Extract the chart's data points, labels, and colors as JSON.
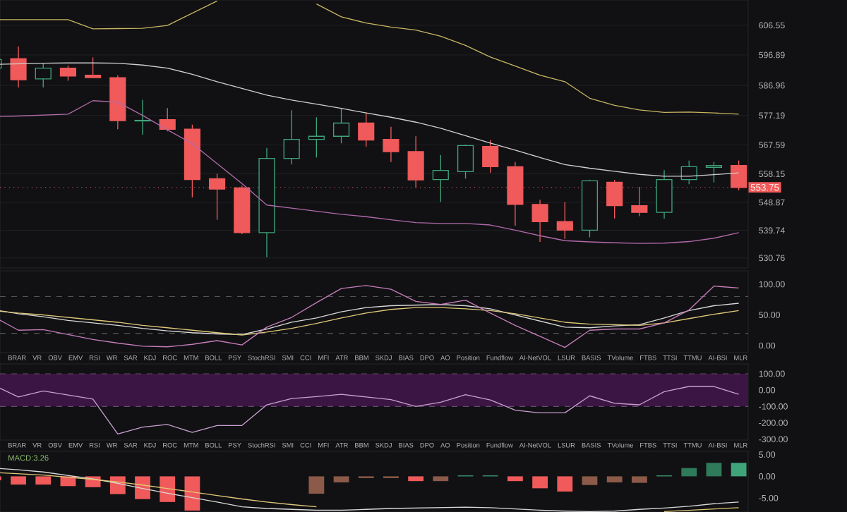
{
  "chart_data": [
    {
      "type": "candlestick",
      "categories": [
        null,
        null,
        null,
        null,
        null,
        null,
        null,
        null,
        null,
        null,
        null,
        null,
        null,
        null,
        null,
        null,
        null,
        null,
        null,
        null,
        null,
        null,
        null,
        null,
        null,
        null,
        null,
        null,
        null,
        null,
        null
      ],
      "ohlc": [
        [
          592.6,
          595.4,
          592.6,
          595.4
        ],
        [
          595.7,
          599.7,
          586.3,
          588.8
        ],
        [
          589.1,
          594.1,
          586.3,
          592.6
        ],
        [
          592.6,
          593.4,
          588.5,
          590.0
        ],
        [
          590.3,
          596.1,
          589.5,
          589.5
        ],
        [
          589.5,
          590.3,
          572.7,
          575.5
        ],
        [
          575.4,
          582.3,
          570.9,
          575.6
        ],
        [
          575.8,
          579.6,
          572.0,
          572.7
        ],
        [
          572.7,
          574.2,
          550.5,
          556.3
        ],
        [
          556.6,
          558.2,
          543.2,
          553.2
        ],
        [
          553.6,
          554.3,
          538.5,
          539.0
        ],
        [
          539.0,
          566.6,
          531.0,
          563.2
        ],
        [
          563.2,
          578.9,
          561.2,
          569.4
        ],
        [
          569.4,
          576.6,
          563.5,
          570.4
        ],
        [
          570.4,
          579.6,
          568.1,
          574.7
        ],
        [
          574.7,
          578.1,
          567.0,
          569.2
        ],
        [
          569.4,
          573.5,
          562.0,
          565.4
        ],
        [
          565.4,
          570.4,
          553.6,
          556.2
        ],
        [
          556.3,
          564.3,
          549.0,
          559.3
        ],
        [
          558.9,
          567.7,
          556.6,
          567.4
        ],
        [
          567.1,
          569.2,
          558.5,
          560.5
        ],
        [
          560.5,
          562.0,
          541.3,
          548.2
        ],
        [
          548.2,
          549.7,
          536.0,
          542.6
        ],
        [
          542.6,
          549.0,
          537.0,
          539.8
        ],
        [
          539.8,
          556.2,
          537.5,
          555.9
        ],
        [
          555.4,
          556.2,
          543.6,
          547.8
        ],
        [
          547.8,
          553.9,
          544.4,
          545.6
        ],
        [
          545.6,
          559.4,
          543.6,
          556.3
        ],
        [
          556.3,
          562.5,
          554.8,
          560.5
        ],
        [
          560.3,
          562.0,
          555.4,
          560.9
        ],
        [
          560.9,
          562.5,
          552.8,
          553.75
        ]
      ],
      "colors": [
        "#3fa47a",
        "#f05a5a",
        "#3fa47a",
        "#f05a5a",
        "#f05a5a",
        "#f05a5a",
        "#3fa47a",
        "#f05a5a",
        "#f05a5a",
        "#f05a5a",
        "#f05a5a",
        "#3fa47a",
        "#3fa47a",
        "#3fa47a",
        "#3fa47a",
        "#f05a5a",
        "#f05a5a",
        "#f05a5a",
        "#3fa47a",
        "#3fa47a",
        "#f05a5a",
        "#f05a5a",
        "#f05a5a",
        "#f05a5a",
        "#3fa47a",
        "#f05a5a",
        "#f05a5a",
        "#3fa47a",
        "#3fa47a",
        "#3fa47a",
        "#f05a5a"
      ],
      "series": [
        {
          "type": "line",
          "color": "#c8b560",
          "values": [
            608.4,
            608.4,
            608.4,
            608.4,
            605.4,
            605.5,
            605.6,
            606.5,
            610.5,
            614.5,
            null,
            null,
            null,
            613.5,
            609.3,
            607.3,
            606.0,
            605.0,
            603.0,
            600.0,
            596.2,
            593.3,
            590.3,
            588.2,
            582.8,
            580.5,
            579.0,
            578.2,
            578.3,
            578.0,
            577.6
          ]
        },
        {
          "type": "line",
          "color": "#d0d0d0",
          "values": [
            593.8,
            594.0,
            594.2,
            594.3,
            594.3,
            594.2,
            593.6,
            592.6,
            590.6,
            588.2,
            586.0,
            583.8,
            582.2,
            580.9,
            579.5,
            578.0,
            576.6,
            575.0,
            573.0,
            570.6,
            568.2,
            565.9,
            563.5,
            561.2,
            560.0,
            559.0,
            558.0,
            557.4,
            557.4,
            557.9,
            558.5
          ]
        },
        {
          "type": "line",
          "color": "#b06aa8",
          "values": [
            576.8,
            577.0,
            577.3,
            577.6,
            582.0,
            581.5,
            577.2,
            572.5,
            568.0,
            561.5,
            555.0,
            548.0,
            547.0,
            546.0,
            545.0,
            544.2,
            543.2,
            542.3,
            542.0,
            542.0,
            541.5,
            539.8,
            538.0,
            536.4,
            536.0,
            535.7,
            535.5,
            535.6,
            536.1,
            537.2,
            539.0
          ]
        }
      ],
      "ylim": [
        527.5,
        614.8
      ],
      "yticks": [
        606.55,
        596.89,
        586.96,
        577.19,
        567.59,
        558.15,
        548.87,
        539.74,
        530.76
      ],
      "grid": true,
      "tick_labels": "y",
      "ref_lines": [
        {
          "axis": "y",
          "value": 553.75,
          "label": "553.75",
          "color": "#f05a5a",
          "line_style": "dotted"
        }
      ]
    },
    {
      "type": "line",
      "categories": [
        null,
        null,
        null,
        null,
        null,
        null,
        null,
        null,
        null,
        null,
        null,
        null,
        null,
        null,
        null,
        null,
        null,
        null,
        null,
        null,
        null,
        null,
        null,
        null,
        null,
        null,
        null,
        null,
        null,
        null,
        null
      ],
      "series": [
        {
          "color": "#d8d8d8",
          "values": [
            58.5,
            52,
            47,
            41,
            37,
            33,
            28,
            24,
            21,
            19,
            18,
            27,
            38,
            45,
            55,
            62,
            65,
            66,
            67,
            65,
            60,
            50,
            40,
            30,
            29,
            32,
            34,
            45,
            57,
            65,
            69
          ]
        },
        {
          "color": "#e0c878",
          "values": [
            57,
            53,
            50,
            46,
            42,
            38,
            33,
            29,
            25,
            21,
            17,
            22,
            28,
            36,
            45,
            53,
            59,
            62,
            62,
            60,
            57,
            52,
            45,
            38,
            35,
            34,
            33,
            37,
            44,
            51,
            57
          ]
        },
        {
          "color": "#c77dba",
          "values": [
            47,
            25,
            26,
            18,
            10,
            4,
            -1,
            -2,
            2,
            8,
            1,
            30,
            46,
            70,
            93,
            98,
            92,
            72,
            67,
            74,
            53,
            33,
            15,
            -3,
            25,
            27,
            27,
            37,
            58,
            97,
            94
          ]
        }
      ],
      "ylim": [
        -11.5,
        122
      ],
      "yticks": [
        {
          "value": 100,
          "label": "100.00"
        },
        {
          "value": 50,
          "label": "50.00"
        },
        {
          "value": 0,
          "label": "0.00"
        }
      ],
      "tick_labels": "y",
      "ref_lines": [
        {
          "axis": "y",
          "value": 80,
          "color": "#555555",
          "line_style": "dashed"
        },
        {
          "axis": "y",
          "value": 20,
          "color": "#555555",
          "line_style": "dashed"
        }
      ],
      "annotations": [
        "BRAR",
        "VR",
        "OBV",
        "EMV",
        "RSI",
        "WR",
        "SAR",
        "KDJ",
        "ROC",
        "MTM",
        "BOLL",
        "PSY",
        "StochRSI",
        "SMI",
        "CCI",
        "MFI",
        "ATR",
        "BBM",
        "SKDJ",
        "BIAS",
        "DPO",
        "AO",
        "Position",
        "Fundflow",
        "AI-NetVOL",
        "LSUR",
        "BASIS",
        "TVolume",
        "FTBS",
        "TTSI",
        "TTMU",
        "AI-BSI",
        "MLR"
      ]
    },
    {
      "type": "line",
      "categories": [
        null,
        null,
        null,
        null,
        null,
        null,
        null,
        null,
        null,
        null,
        null,
        null,
        null,
        null,
        null,
        null,
        null,
        null,
        null,
        null,
        null,
        null,
        null,
        null,
        null,
        null,
        null,
        null,
        null,
        null,
        null
      ],
      "series": [
        {
          "color": "#c9a0d0",
          "values": [
            30,
            -42,
            -5,
            -30,
            -55,
            -268,
            -226,
            -210,
            -258,
            -216,
            -216,
            -90,
            -52,
            -40,
            -26,
            -42,
            -58,
            -100,
            -74,
            -28,
            -60,
            -123,
            -139,
            -139,
            -35,
            -81,
            -90,
            -10,
            22,
            22,
            -26
          ]
        }
      ],
      "ylim": [
        -305,
        160
      ],
      "yticks": [
        {
          "value": 100,
          "label": "100.00"
        },
        {
          "value": 0,
          "label": "0.00"
        },
        {
          "value": -100,
          "label": "-100.00"
        },
        {
          "value": -200,
          "label": "-200.00"
        },
        {
          "value": -300,
          "label": "-300.00"
        }
      ],
      "tick_labels": "y",
      "bands": [
        {
          "axis": "y",
          "from": -100,
          "to": 100,
          "color": "#3b1644"
        }
      ],
      "ref_lines": [
        {
          "axis": "y",
          "value": 100,
          "color": "#6a4a70",
          "line_style": "dashed"
        },
        {
          "axis": "y",
          "value": -100,
          "color": "#6a4a70",
          "line_style": "dashed"
        }
      ],
      "annotations": [
        "BRAR",
        "VR",
        "OBV",
        "EMV",
        "RSI",
        "WR",
        "SAR",
        "KDJ",
        "ROC",
        "MTM",
        "BOLL",
        "PSY",
        "StochRSI",
        "SMI",
        "CCI",
        "MFI",
        "ATR",
        "BBM",
        "SKDJ",
        "BIAS",
        "DPO",
        "AO",
        "Position",
        "Fundflow",
        "AI-NetVOL",
        "LSUR",
        "BASIS",
        "TVolume",
        "FTBS",
        "TTSI",
        "TTMU",
        "AI-BSI",
        "MLR"
      ]
    },
    {
      "type": "bar",
      "title": "MACD:3.26",
      "categories": [
        null,
        null,
        null,
        null,
        null,
        null,
        null,
        null,
        null,
        null,
        null,
        null,
        null,
        null,
        null,
        null,
        null,
        null,
        null,
        null,
        null,
        null,
        null,
        null,
        null,
        null,
        null,
        null,
        null,
        null,
        null
      ],
      "series": [
        {
          "type": "bar",
          "values": [
            -0.9,
            -1.9,
            -1.9,
            -2.25,
            -2.5,
            -4.1,
            -5.25,
            -5.9,
            -7.9,
            null,
            null,
            null,
            null,
            -4.0,
            -1.4,
            -0.4,
            -0.4,
            -1.1,
            -1.1,
            0.2,
            0.2,
            -1.1,
            -2.75,
            -3.5,
            -2.0,
            -1.4,
            -1.5,
            0.2,
            1.9,
            3.1,
            3.1
          ],
          "colors": [
            "#f05a5a",
            "#f05a5a",
            "#f05a5a",
            "#f05a5a",
            "#f05a5a",
            "#f05a5a",
            "#f05a5a",
            "#f05a5a",
            "#f05a5a",
            "#f05a5a",
            "#f05a5a",
            "#8c5a48",
            "#8c5a48",
            "#8c5a48",
            "#8c5a48",
            "#8c5a48",
            "#8c5a48",
            "#f05a5a",
            "#8c5a48",
            "#3fa47a",
            "#3fa47a",
            "#f05a5a",
            "#f05a5a",
            "#f05a5a",
            "#8c5a48",
            "#8c5a48",
            "#8c5a48",
            "#3fa47a",
            "#2f7a5a",
            "#2f7a5a",
            "#3fa47a"
          ]
        },
        {
          "type": "line",
          "color": "#d8d8d8",
          "values": [
            1.9,
            1.5,
            1.0,
            0.2,
            -0.6,
            -1.6,
            -2.8,
            -3.9,
            -4.9,
            -5.9,
            -7.0,
            -7.4,
            -7.6,
            -7.8,
            -7.8,
            -7.6,
            -7.4,
            -7.3,
            -7.2,
            -7.1,
            -7.2,
            -7.5,
            -7.8,
            -8.0,
            -8.1,
            -8.0,
            -7.6,
            -7.3,
            -6.9,
            -6.3,
            -5.9
          ]
        },
        {
          "type": "line",
          "color": "#e0c878",
          "values": [
            0.9,
            0.6,
            0.3,
            -0.2,
            -0.7,
            -1.3,
            -2.0,
            -2.8,
            -3.6,
            -4.4,
            -5.2,
            -5.9,
            -6.5,
            -7.0,
            null,
            null,
            null,
            null,
            null,
            null,
            null,
            null,
            null,
            null,
            null,
            null,
            null,
            -8.1,
            -7.8,
            -7.5,
            -7.2
          ]
        }
      ],
      "ylim": [
        -8.2,
        5.75
      ],
      "yticks": [
        {
          "value": 5,
          "label": "5.00"
        },
        {
          "value": 0,
          "label": "0.00"
        },
        {
          "value": -5,
          "label": "-5.00"
        }
      ],
      "tick_labels": "y"
    }
  ]
}
